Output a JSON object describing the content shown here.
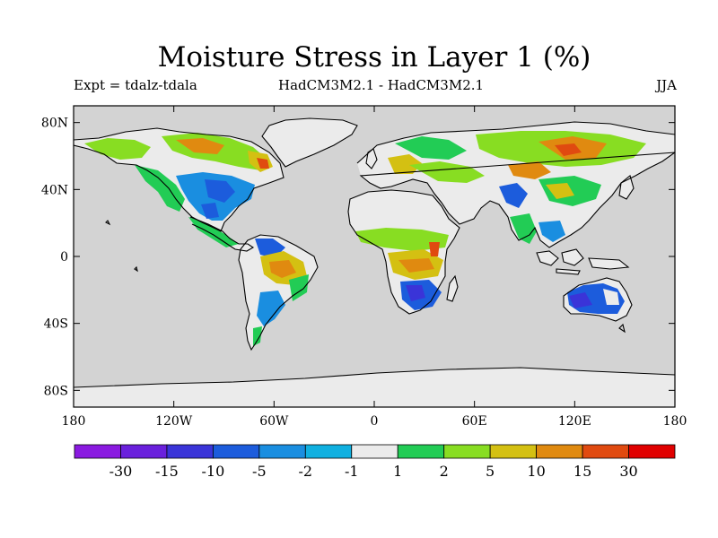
{
  "figure": {
    "title": "Moisture Stress in Layer 1 (%)",
    "left_label": "Expt = tdalz-tdala",
    "center_label": "HadCM3M2.1 - HadCM3M2.1",
    "right_label": "JJA"
  },
  "map": {
    "projection": "cylindrical-equidistant",
    "lon_range": [
      -180,
      180
    ],
    "lat_range": [
      -90,
      90
    ],
    "ocean_color": "#d3d3d3",
    "lat_ticks": [
      {
        "value": 80,
        "label": "80N"
      },
      {
        "value": 40,
        "label": "40N"
      },
      {
        "value": 0,
        "label": "0"
      },
      {
        "value": -40,
        "label": "40S"
      },
      {
        "value": -80,
        "label": "80S"
      }
    ],
    "lon_ticks": [
      {
        "value": -180,
        "label": "180"
      },
      {
        "value": -120,
        "label": "120W"
      },
      {
        "value": -60,
        "label": "60W"
      },
      {
        "value": 0,
        "label": "0"
      },
      {
        "value": 60,
        "label": "60E"
      },
      {
        "value": 120,
        "label": "120E"
      },
      {
        "value": 180,
        "label": "180"
      }
    ]
  },
  "colorbar": {
    "colors": [
      "#8a1ae0",
      "#6a20dc",
      "#3a34d8",
      "#1c5cdc",
      "#1a8ee0",
      "#10b0e0",
      "#ebebeb",
      "#22cc55",
      "#88dd22",
      "#d4c012",
      "#e08a10",
      "#e04a10",
      "#e00000"
    ],
    "labels": [
      "-30",
      "-15",
      "-10",
      "-5",
      "-2",
      "-1",
      "1",
      "2",
      "5",
      "10",
      "15",
      "30"
    ]
  }
}
